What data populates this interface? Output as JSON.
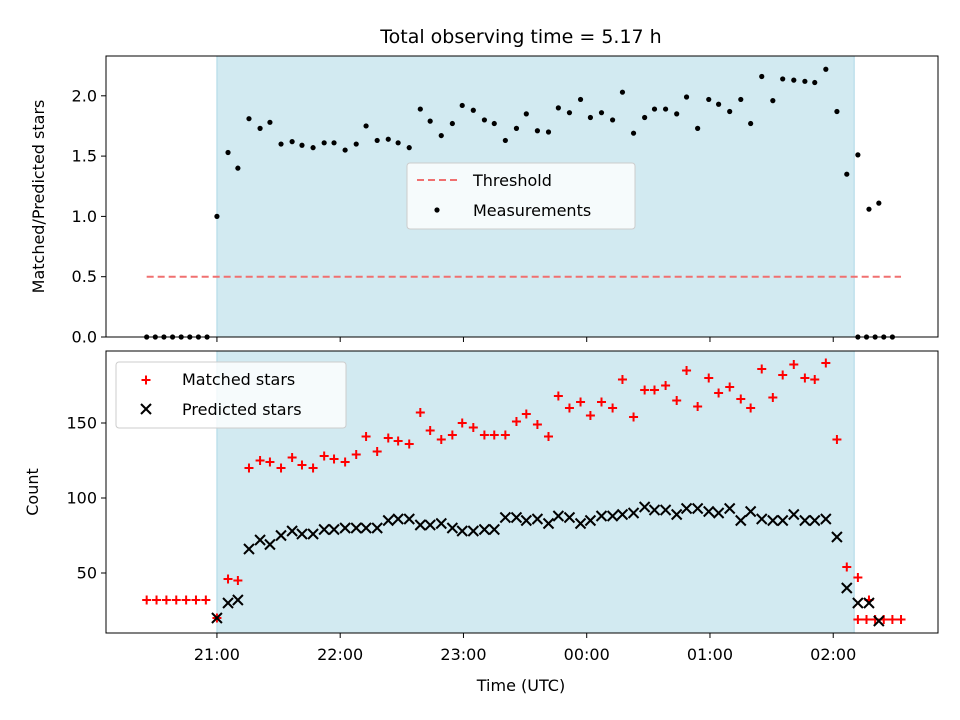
{
  "figure": {
    "title": "Total observing time = 5.17 h",
    "xlabel": "Time (UTC)",
    "xticks": [
      {
        "t": 21,
        "label": "21:00"
      },
      {
        "t": 22,
        "label": "22:00"
      },
      {
        "t": 23,
        "label": "23:00"
      },
      {
        "t": 24,
        "label": "00:00"
      },
      {
        "t": 25,
        "label": "01:00"
      },
      {
        "t": 26,
        "label": "02:00"
      }
    ],
    "shade_color": "#add8e6",
    "observing_window": [
      21.0,
      26.17
    ]
  },
  "chart_data": [
    {
      "type": "scatter",
      "ylabel": "Matched/Predicted stars",
      "ylim": [
        0,
        2.33
      ],
      "yticks": [
        {
          "v": 0.0,
          "label": "0.0"
        },
        {
          "v": 0.5,
          "label": "0.5"
        },
        {
          "v": 1.0,
          "label": "1.0"
        },
        {
          "v": 1.5,
          "label": "1.5"
        },
        {
          "v": 2.0,
          "label": "2.0"
        }
      ],
      "threshold": {
        "name": "Threshold",
        "value": 0.5,
        "x_range": [
          20.43,
          26.55
        ],
        "color": "#f07070"
      },
      "legend": {
        "position": "center",
        "entries": [
          "Threshold",
          "Measurements"
        ]
      },
      "series": [
        {
          "name": "Measurements",
          "color": "#000000",
          "marker": "dot",
          "points": [
            [
              20.43,
              0.0
            ],
            [
              20.5,
              0.0
            ],
            [
              20.57,
              0.0
            ],
            [
              20.64,
              0.0
            ],
            [
              20.71,
              0.0
            ],
            [
              20.78,
              0.0
            ],
            [
              20.85,
              0.0
            ],
            [
              20.92,
              0.0
            ],
            [
              21.0,
              1.0
            ],
            [
              21.09,
              1.53
            ],
            [
              21.17,
              1.4
            ],
            [
              21.26,
              1.81
            ],
            [
              21.35,
              1.73
            ],
            [
              21.43,
              1.78
            ],
            [
              21.52,
              1.6
            ],
            [
              21.61,
              1.62
            ],
            [
              21.69,
              1.59
            ],
            [
              21.78,
              1.57
            ],
            [
              21.87,
              1.61
            ],
            [
              21.95,
              1.61
            ],
            [
              22.04,
              1.55
            ],
            [
              22.13,
              1.6
            ],
            [
              22.21,
              1.75
            ],
            [
              22.3,
              1.63
            ],
            [
              22.39,
              1.64
            ],
            [
              22.47,
              1.61
            ],
            [
              22.56,
              1.57
            ],
            [
              22.65,
              1.89
            ],
            [
              22.73,
              1.79
            ],
            [
              22.82,
              1.67
            ],
            [
              22.91,
              1.77
            ],
            [
              22.99,
              1.92
            ],
            [
              23.08,
              1.88
            ],
            [
              23.17,
              1.8
            ],
            [
              23.25,
              1.77
            ],
            [
              23.34,
              1.63
            ],
            [
              23.43,
              1.73
            ],
            [
              23.51,
              1.85
            ],
            [
              23.6,
              1.71
            ],
            [
              23.69,
              1.7
            ],
            [
              23.77,
              1.9
            ],
            [
              23.86,
              1.86
            ],
            [
              23.95,
              1.97
            ],
            [
              24.03,
              1.82
            ],
            [
              24.12,
              1.86
            ],
            [
              24.21,
              1.8
            ],
            [
              24.29,
              2.03
            ],
            [
              24.38,
              1.69
            ],
            [
              24.47,
              1.82
            ],
            [
              24.55,
              1.89
            ],
            [
              24.64,
              1.89
            ],
            [
              24.73,
              1.85
            ],
            [
              24.81,
              1.99
            ],
            [
              24.9,
              1.73
            ],
            [
              24.99,
              1.97
            ],
            [
              25.07,
              1.93
            ],
            [
              25.16,
              1.87
            ],
            [
              25.25,
              1.97
            ],
            [
              25.33,
              1.77
            ],
            [
              25.42,
              2.16
            ],
            [
              25.51,
              1.96
            ],
            [
              25.59,
              2.14
            ],
            [
              25.68,
              2.13
            ],
            [
              25.77,
              2.12
            ],
            [
              25.85,
              2.11
            ],
            [
              25.94,
              2.22
            ],
            [
              26.03,
              1.87
            ],
            [
              26.11,
              1.35
            ],
            [
              26.2,
              1.51
            ],
            [
              26.29,
              1.06
            ],
            [
              26.37,
              1.11
            ],
            [
              26.2,
              0.0
            ],
            [
              26.27,
              0.0
            ],
            [
              26.34,
              0.0
            ],
            [
              26.41,
              0.0
            ],
            [
              26.48,
              0.0
            ]
          ]
        }
      ]
    },
    {
      "type": "scatter",
      "ylabel": "Count",
      "ylim": [
        10,
        198
      ],
      "yticks": [
        {
          "v": 50,
          "label": "50"
        },
        {
          "v": 100,
          "label": "100"
        },
        {
          "v": 150,
          "label": "150"
        }
      ],
      "legend": {
        "position": "top-left",
        "entries": [
          "Matched stars",
          "Predicted stars"
        ]
      },
      "series": [
        {
          "name": "Matched stars",
          "color": "#ff0000",
          "marker": "plus",
          "points": [
            [
              20.43,
              32
            ],
            [
              20.51,
              32
            ],
            [
              20.59,
              32
            ],
            [
              20.67,
              32
            ],
            [
              20.75,
              32
            ],
            [
              20.83,
              32
            ],
            [
              20.91,
              32
            ],
            [
              21.0,
              20
            ],
            [
              21.09,
              46
            ],
            [
              21.17,
              45
            ],
            [
              21.26,
              120
            ],
            [
              21.35,
              125
            ],
            [
              21.43,
              124
            ],
            [
              21.52,
              120
            ],
            [
              21.61,
              127
            ],
            [
              21.69,
              122
            ],
            [
              21.78,
              120
            ],
            [
              21.87,
              128
            ],
            [
              21.95,
              126
            ],
            [
              22.04,
              124
            ],
            [
              22.13,
              129
            ],
            [
              22.21,
              141
            ],
            [
              22.3,
              131
            ],
            [
              22.39,
              140
            ],
            [
              22.47,
              138
            ],
            [
              22.56,
              136
            ],
            [
              22.65,
              157
            ],
            [
              22.73,
              145
            ],
            [
              22.82,
              139
            ],
            [
              22.91,
              142
            ],
            [
              22.99,
              150
            ],
            [
              23.08,
              147
            ],
            [
              23.17,
              142
            ],
            [
              23.25,
              142
            ],
            [
              23.34,
              142
            ],
            [
              23.43,
              151
            ],
            [
              23.51,
              156
            ],
            [
              23.6,
              149
            ],
            [
              23.69,
              141
            ],
            [
              23.77,
              168
            ],
            [
              23.86,
              160
            ],
            [
              23.95,
              164
            ],
            [
              24.03,
              155
            ],
            [
              24.12,
              164
            ],
            [
              24.21,
              160
            ],
            [
              24.29,
              179
            ],
            [
              24.38,
              154
            ],
            [
              24.47,
              172
            ],
            [
              24.55,
              172
            ],
            [
              24.64,
              175
            ],
            [
              24.73,
              165
            ],
            [
              24.81,
              185
            ],
            [
              24.9,
              161
            ],
            [
              24.99,
              180
            ],
            [
              25.07,
              170
            ],
            [
              25.16,
              174
            ],
            [
              25.25,
              166
            ],
            [
              25.33,
              160
            ],
            [
              25.42,
              186
            ],
            [
              25.51,
              167
            ],
            [
              25.59,
              182
            ],
            [
              25.68,
              189
            ],
            [
              25.77,
              180
            ],
            [
              25.85,
              179
            ],
            [
              25.94,
              190
            ],
            [
              26.03,
              139
            ],
            [
              26.11,
              54
            ],
            [
              26.2,
              47
            ],
            [
              26.29,
              32
            ],
            [
              26.2,
              19
            ],
            [
              26.27,
              19
            ],
            [
              26.34,
              19
            ],
            [
              26.41,
              19
            ],
            [
              26.48,
              19
            ],
            [
              26.55,
              19
            ]
          ]
        },
        {
          "name": "Predicted stars",
          "color": "#000000",
          "marker": "x",
          "points": [
            [
              21.0,
              20
            ],
            [
              21.09,
              30
            ],
            [
              21.17,
              32
            ],
            [
              21.26,
              66
            ],
            [
              21.35,
              72
            ],
            [
              21.43,
              69
            ],
            [
              21.52,
              75
            ],
            [
              21.61,
              78
            ],
            [
              21.69,
              76
            ],
            [
              21.78,
              76
            ],
            [
              21.87,
              79
            ],
            [
              21.95,
              79
            ],
            [
              22.04,
              80
            ],
            [
              22.13,
              80
            ],
            [
              22.21,
              80
            ],
            [
              22.3,
              80
            ],
            [
              22.39,
              85
            ],
            [
              22.47,
              86
            ],
            [
              22.56,
              86
            ],
            [
              22.65,
              82
            ],
            [
              22.73,
              82
            ],
            [
              22.82,
              83
            ],
            [
              22.91,
              80
            ],
            [
              22.99,
              78
            ],
            [
              23.08,
              78
            ],
            [
              23.17,
              79
            ],
            [
              23.25,
              79
            ],
            [
              23.34,
              87
            ],
            [
              23.43,
              87
            ],
            [
              23.51,
              85
            ],
            [
              23.6,
              86
            ],
            [
              23.69,
              83
            ],
            [
              23.77,
              88
            ],
            [
              23.86,
              87
            ],
            [
              23.95,
              83
            ],
            [
              24.03,
              85
            ],
            [
              24.12,
              88
            ],
            [
              24.21,
              88
            ],
            [
              24.29,
              89
            ],
            [
              24.38,
              90
            ],
            [
              24.47,
              94
            ],
            [
              24.55,
              92
            ],
            [
              24.64,
              92
            ],
            [
              24.73,
              89
            ],
            [
              24.81,
              93
            ],
            [
              24.9,
              93
            ],
            [
              24.99,
              91
            ],
            [
              25.07,
              90
            ],
            [
              25.16,
              93
            ],
            [
              25.25,
              85
            ],
            [
              25.33,
              91
            ],
            [
              25.42,
              86
            ],
            [
              25.51,
              85
            ],
            [
              25.59,
              85
            ],
            [
              25.68,
              89
            ],
            [
              25.77,
              85
            ],
            [
              25.85,
              85
            ],
            [
              25.94,
              86
            ],
            [
              26.03,
              74
            ],
            [
              26.11,
              40
            ],
            [
              26.2,
              30
            ],
            [
              26.29,
              30
            ],
            [
              26.37,
              18
            ]
          ]
        }
      ]
    }
  ]
}
